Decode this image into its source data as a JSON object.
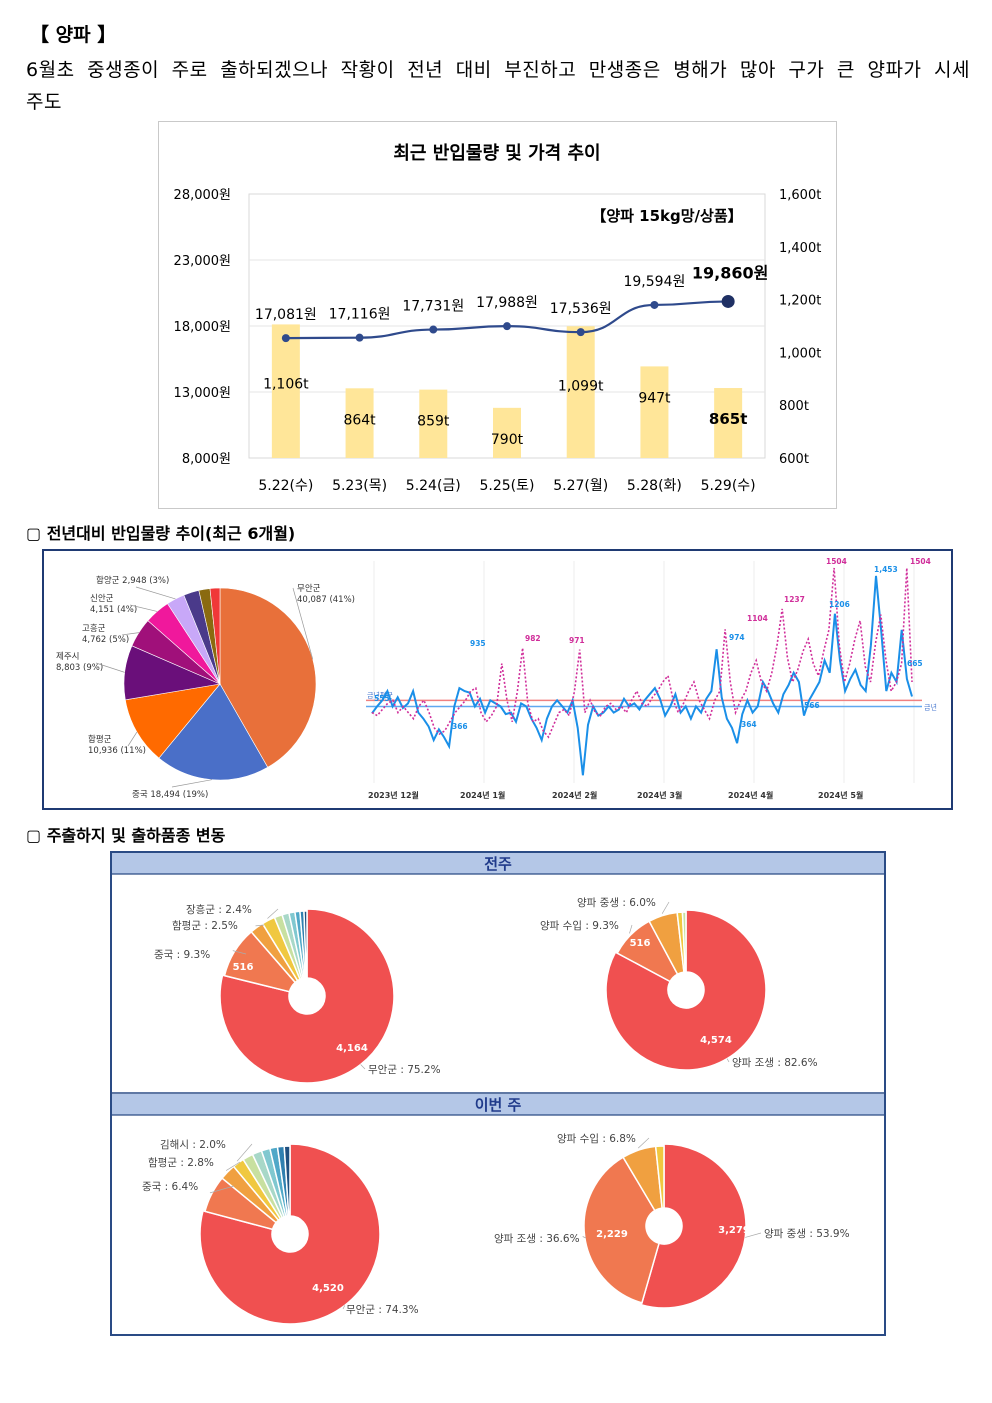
{
  "header": {
    "section_title": "【 양파 】",
    "summary": "6월초 중생종이 주로 출하되겠으나 작황이 전년 대비 부진하고 만생종은 병해가 많아 구가 큰 양파가 시세 주도"
  },
  "sections": {
    "yoy_title": "▢ 전년대비 반입물량 추이(최근 6개월)",
    "origin_title": "▢ 주출하지 및 출하품종 변동"
  },
  "colors": {
    "bar": "#ffe699",
    "price_line": "#2f4a8c",
    "pie_red": "#f05050",
    "pie_orange": "#f07850"
  },
  "chart_data": [
    {
      "type": "bar",
      "title": "최근 반입물량 및 가격 추이",
      "subtitle": "【양파 15kg망/상품】",
      "categories": [
        "5.22(수)",
        "5.23(목)",
        "5.24(금)",
        "5.25(토)",
        "5.27(월)",
        "5.28(화)",
        "5.29(수)"
      ],
      "series": [
        {
          "type": "bar",
          "axis": "right",
          "values": [
            1106,
            864,
            859,
            790,
            1099,
            947,
            865
          ],
          "labels": [
            "1,106t",
            "864t",
            "859t",
            "790t",
            "1,099t",
            "947t",
            "865t"
          ]
        },
        {
          "type": "line",
          "axis": "left",
          "values": [
            17081,
            17116,
            17731,
            17988,
            17536,
            19594,
            19860
          ],
          "labels": [
            "17,081원",
            "17,116원",
            "17,731원",
            "17,988원",
            "17,536원",
            "19,594원",
            "19,860원"
          ]
        }
      ],
      "left_axis": {
        "range": [
          8000,
          28000
        ],
        "ticks": [
          8000,
          13000,
          18000,
          23000,
          28000
        ],
        "tick_labels": [
          "8,000원",
          "13,000원",
          "18,000원",
          "23,000원",
          "28,000원"
        ]
      },
      "right_axis": {
        "range": [
          600,
          1600
        ],
        "ticks": [
          600,
          800,
          1000,
          1200,
          1400,
          1600
        ],
        "tick_labels": [
          "600t",
          "800t",
          "1,000t",
          "1,200t",
          "1,400t",
          "1,600t"
        ]
      },
      "grid": true
    },
    {
      "type": "pie",
      "slices": [
        {
          "label": "무안군",
          "value": 40087,
          "text": "무안군 40,087 (41%)",
          "color": "#e8703a"
        },
        {
          "label": "중국",
          "value": 18494,
          "text": "중국 18,494 (19%)",
          "color": "#4a6fc8"
        },
        {
          "label": "함평군",
          "value": 10936,
          "text": "함평군 10,936 (11%)",
          "color": "#ff6a00"
        },
        {
          "label": "제주시",
          "value": 8803,
          "text": "제주시 8,803 (9%)",
          "color": "#6a0f7a"
        },
        {
          "label": "고흥군",
          "value": 4762,
          "text": "고흥군 4,762 (5%)",
          "color": "#a0107a"
        },
        {
          "label": "신안군",
          "value": 4151,
          "text": "신안군 4,151 (4%)",
          "color": "#f0189c"
        },
        {
          "label": "함양군",
          "value": 2948,
          "text": "함양군 2,948 (3%)",
          "color": "#c8a8f8"
        },
        {
          "label": "기타1",
          "value": 2500,
          "text": "",
          "color": "#4a3a8a"
        },
        {
          "label": "기타2",
          "value": 1800,
          "text": "",
          "color": "#8a6a10"
        },
        {
          "label": "기타3",
          "value": 1600,
          "text": "",
          "color": "#f03838"
        }
      ]
    },
    {
      "type": "line",
      "x_tick_labels": [
        "2023년 12월",
        "2024년 1월",
        "2024년 2월",
        "2024년 3월",
        "2024년 4월",
        "2024년 5월"
      ],
      "reference_labels": [
        "금년평균",
        "금년"
      ],
      "series": [
        {
          "name": "금년",
          "color": "#1a8fe8",
          "values": [
            555,
            600,
            640,
            700,
            600,
            660,
            590,
            620,
            700,
            560,
            520,
            470,
            380,
            450,
            400,
            340,
            600,
            720,
            700,
            690,
            600,
            650,
            560,
            640,
            620,
            600,
            550,
            560,
            500,
            620,
            600,
            520,
            460,
            380,
            520,
            600,
            640,
            600,
            560,
            640,
            460,
            150,
            480,
            600,
            540,
            560,
            600,
            560,
            580,
            650,
            600,
            620,
            580,
            640,
            680,
            720,
            650,
            540,
            600,
            680,
            560,
            600,
            520,
            600,
            560,
            650,
            700,
            974,
            660,
            520,
            460,
            360,
            550,
            640,
            560,
            600,
            760,
            700,
            620,
            560,
            680,
            740,
            820,
            760,
            540,
            640,
            700,
            760,
            900,
            820,
            1206,
            900,
            700,
            780,
            840,
            740,
            700,
            1000,
            1453,
            1100,
            700,
            820,
            760,
            1100,
            780,
            665
          ]
        },
        {
          "name": "전년",
          "color": "#d02e9a",
          "values": [
            560,
            540,
            580,
            620,
            640,
            560,
            600,
            560,
            520,
            600,
            640,
            560,
            460,
            420,
            440,
            500,
            560,
            600,
            640,
            700,
            720,
            560,
            500,
            540,
            600,
            880,
            640,
            500,
            700,
            982,
            620,
            500,
            520,
            440,
            400,
            480,
            560,
            580,
            540,
            700,
            971,
            560,
            640,
            560,
            540,
            600,
            620,
            580,
            600,
            560,
            640,
            700,
            620,
            600,
            660,
            700,
            760,
            800,
            640,
            560,
            620,
            700,
            760,
            640,
            580,
            520,
            640,
            700,
            1104,
            760,
            560,
            640,
            700,
            820,
            900,
            760,
            700,
            820,
            1000,
            1237,
            920,
            760,
            840,
            960,
            1040,
            880,
            800,
            960,
            1100,
            1504,
            1000,
            760,
            880,
            1040,
            1160,
            860,
            760,
            1020,
            1200,
            900,
            700,
            760,
            880,
            1504,
            760
          ]
        }
      ]
    },
    {
      "type": "pie",
      "panel_label": "전주",
      "subtype": "donut",
      "slices": [
        {
          "label": "무안군 : 75.2%",
          "value": 4164,
          "value_label": "4,164",
          "color": "#f05050"
        },
        {
          "label": "중국 : 9.3%",
          "value": 516,
          "value_label": "516",
          "color": "#f07850"
        },
        {
          "label": "함평군 : 2.5%",
          "value": 138,
          "value_label": "",
          "color": "#f0a040"
        },
        {
          "label": "장흥군 : 2.4%",
          "value": 133,
          "value_label": "",
          "color": "#f0c840"
        },
        {
          "label": "",
          "value": 80,
          "value_label": "",
          "color": "#c8e0a0"
        },
        {
          "label": "",
          "value": 70,
          "value_label": "",
          "color": "#a8d8c8"
        },
        {
          "label": "",
          "value": 60,
          "value_label": "",
          "color": "#80c8d0"
        },
        {
          "label": "",
          "value": 50,
          "value_label": "",
          "color": "#50a8c8"
        },
        {
          "label": "",
          "value": 40,
          "value_label": "",
          "color": "#3080b0"
        },
        {
          "label": "",
          "value": 30,
          "value_label": "",
          "color": "#205080"
        }
      ]
    },
    {
      "type": "pie",
      "panel_label": "전주",
      "subtype": "donut",
      "slices": [
        {
          "label": "양파 조생 : 82.6%",
          "value": 4574,
          "value_label": "4,574",
          "color": "#f05050"
        },
        {
          "label": "양파 수입 : 9.3%",
          "value": 516,
          "value_label": "516",
          "color": "#f07850"
        },
        {
          "label": "양파 중생 : 6.0%",
          "value": 332,
          "value_label": "",
          "color": "#f0a040"
        },
        {
          "label": "",
          "value": 60,
          "value_label": "",
          "color": "#f0c840"
        },
        {
          "label": "",
          "value": 40,
          "value_label": "",
          "color": "#c8e0a0"
        }
      ]
    },
    {
      "type": "pie",
      "panel_label": "이번 주",
      "subtype": "donut",
      "slices": [
        {
          "label": "무안군 : 74.3%",
          "value": 4520,
          "value_label": "4,520",
          "color": "#f05050"
        },
        {
          "label": "중국 : 6.4%",
          "value": 389,
          "value_label": "",
          "color": "#f07850"
        },
        {
          "label": "함평군 : 2.8%",
          "value": 170,
          "value_label": "",
          "color": "#f0a040"
        },
        {
          "label": "김해시 : 2.0%",
          "value": 122,
          "value_label": "",
          "color": "#f0c840"
        },
        {
          "label": "",
          "value": 110,
          "value_label": "",
          "color": "#c8e0a0"
        },
        {
          "label": "",
          "value": 100,
          "value_label": "",
          "color": "#a8d8c8"
        },
        {
          "label": "",
          "value": 90,
          "value_label": "",
          "color": "#80c8d0"
        },
        {
          "label": "",
          "value": 80,
          "value_label": "",
          "color": "#50a8c8"
        },
        {
          "label": "",
          "value": 70,
          "value_label": "",
          "color": "#3080b0"
        },
        {
          "label": "",
          "value": 60,
          "value_label": "",
          "color": "#205080"
        }
      ]
    },
    {
      "type": "pie",
      "panel_label": "이번 주",
      "subtype": "donut",
      "slices": [
        {
          "label": "양파 중생 : 53.9%",
          "value": 3279,
          "value_label": "3,279",
          "color": "#f05050"
        },
        {
          "label": "양파 조생 : 36.6%",
          "value": 2229,
          "value_label": "2,229",
          "color": "#f07850"
        },
        {
          "label": "양파 수입 : 6.8%",
          "value": 414,
          "value_label": "",
          "color": "#f0a040"
        },
        {
          "label": "",
          "value": 100,
          "value_label": "",
          "color": "#f0c840"
        }
      ]
    }
  ]
}
